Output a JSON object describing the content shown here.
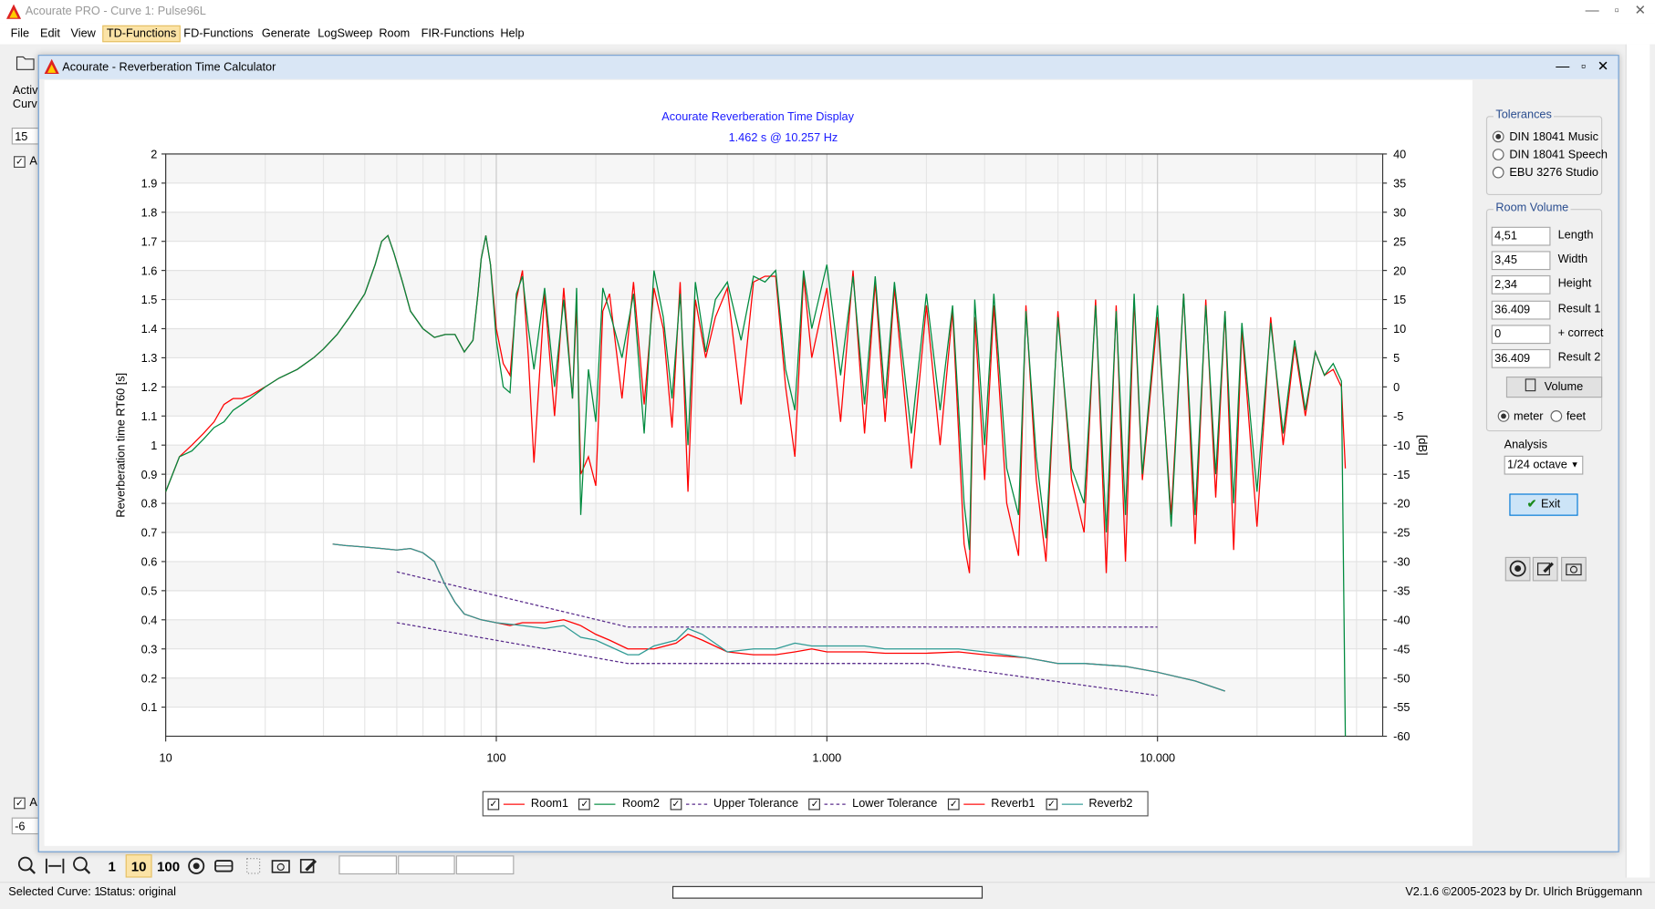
{
  "window": {
    "title": "Acourate PRO - Curve 1: Pulse96L"
  },
  "menu": [
    "File",
    "Edit",
    "View",
    "TD-Functions",
    "FD-Functions",
    "Generate",
    "LogSweep",
    "Room",
    "FIR-Functions",
    "Help"
  ],
  "left_panel": {
    "label1": "Activ",
    "label2": "Curv",
    "field1": "15",
    "check1": "A",
    "check2": "A",
    "field2": "-6"
  },
  "dialog": {
    "title": "Acourate - Reverberation Time Calculator",
    "tolerances": {
      "title": "Tolerances",
      "options": [
        "DIN 18041 Music",
        "DIN 18041 Speech",
        "EBU 3276 Studio"
      ]
    },
    "room_volume": {
      "title": "Room Volume",
      "fields": [
        {
          "value": "4,51",
          "label": "Length"
        },
        {
          "value": "3,45",
          "label": "Width"
        },
        {
          "value": "2,34",
          "label": "Height"
        },
        {
          "value": "36.409",
          "label": "Result 1"
        },
        {
          "value": "0",
          "label": "+ correct"
        },
        {
          "value": "36.409",
          "label": "Result 2"
        }
      ],
      "button": "Volume",
      "units": [
        "meter",
        "feet"
      ]
    },
    "analysis": {
      "label": "Analysis",
      "value": "1/24 octave"
    },
    "exit": "Exit"
  },
  "toolbar": {
    "buttons": [
      "1",
      "10",
      "100"
    ]
  },
  "statusbar": {
    "curve": "Selected Curve: 1",
    "status": "Status: original",
    "version": "V2.1.6 ©2005-2023 by Dr. Ulrich Brüggemann"
  },
  "chart_data": {
    "type": "line",
    "title": "Acourate Reverberation Time Display",
    "subtitle": "1.462 s @ 10.257 Hz",
    "y_label": "Reverberation time RT60 [s]",
    "y2_label": "[dB]",
    "log_x": true,
    "grid": true,
    "legend_position": "bottom",
    "xlim": [
      10,
      48000
    ],
    "xticks": [
      10,
      100,
      {
        "value": 1000,
        "label": "1.000"
      },
      {
        "value": 10000,
        "label": "10.000"
      }
    ],
    "xminorticks": [
      20,
      30,
      40,
      50,
      60,
      70,
      80,
      90,
      200,
      300,
      400,
      500,
      600,
      700,
      800,
      900,
      2000,
      3000,
      4000,
      5000,
      6000,
      7000,
      8000,
      9000,
      20000,
      30000,
      40000
    ],
    "ylim": [
      0,
      2
    ],
    "yticks": [
      0.1,
      0.2,
      0.3,
      0.4,
      0.5,
      0.6,
      0.7,
      0.8,
      0.9,
      1,
      1.1,
      1.2,
      1.3,
      1.4,
      1.5,
      1.6,
      1.7,
      1.8,
      1.9,
      2
    ],
    "y2lim": [
      -60,
      40
    ],
    "y2ticks": [
      -60,
      -55,
      -50,
      -45,
      -40,
      -35,
      -30,
      -25,
      -20,
      -15,
      -10,
      -5,
      0,
      5,
      10,
      15,
      20,
      25,
      30,
      35,
      40
    ],
    "series": [
      {
        "name": "Room1",
        "color": "#ff0000",
        "axis": "y2",
        "x": [
          10,
          11,
          12,
          13,
          14,
          15,
          16,
          17,
          18,
          20,
          22,
          25,
          28,
          30,
          33,
          36,
          40,
          43,
          45,
          47,
          49,
          52,
          55,
          60,
          65,
          70,
          75,
          80,
          85,
          88,
          90,
          93,
          96,
          100,
          105,
          110,
          115,
          120,
          125,
          130,
          140,
          150,
          160,
          170,
          175,
          180,
          190,
          200,
          210,
          220,
          240,
          260,
          280,
          300,
          320,
          340,
          360,
          380,
          400,
          430,
          460,
          500,
          550,
          600,
          650,
          700,
          750,
          800,
          850,
          900,
          1000,
          1100,
          1200,
          1300,
          1400,
          1500,
          1600,
          1800,
          2000,
          2200,
          2400,
          2600,
          2700,
          2800,
          3000,
          3200,
          3500,
          3800,
          4000,
          4300,
          4600,
          5000,
          5500,
          6000,
          6500,
          7000,
          7500,
          8000,
          8500,
          9000,
          10000,
          11000,
          12000,
          13000,
          14000,
          15000,
          16000,
          17000,
          18000,
          20000,
          22000,
          24000,
          26000,
          28000,
          30000,
          32000,
          34000,
          36000,
          37000
        ],
        "values": [
          -18,
          -12,
          -10,
          -8,
          -6,
          -3,
          -2,
          -2,
          -1.5,
          0,
          1.5,
          3,
          5,
          6.5,
          9,
          12,
          16,
          21,
          25,
          26,
          23,
          18,
          13,
          10,
          8.5,
          9,
          9,
          6,
          8,
          16,
          22,
          26,
          21,
          10,
          4,
          2,
          15,
          20,
          5,
          -13,
          16,
          -5,
          17,
          -2,
          14,
          -15,
          -12,
          -17,
          13,
          16,
          -2,
          18,
          -3,
          17,
          10,
          -7,
          18,
          -18,
          15,
          5,
          12,
          17,
          -3,
          18,
          19,
          19,
          0,
          -12,
          19,
          5,
          17,
          -6,
          20,
          -8,
          18,
          -6,
          17,
          -14,
          14,
          -10,
          13,
          -27,
          -32,
          12,
          -16,
          14,
          -20,
          -29,
          14,
          -16,
          -30,
          13,
          -16,
          -25,
          15,
          -32,
          14,
          -30,
          15,
          -16,
          12,
          -22,
          16,
          -27,
          15,
          -19,
          13,
          -28,
          10,
          -24,
          12,
          -10,
          7,
          -5,
          6,
          2,
          3,
          0,
          -14
        ]
      },
      {
        "name": "Room2",
        "color": "#008a3e",
        "axis": "y2",
        "x": [
          10,
          11,
          12,
          13,
          14,
          15,
          16,
          17,
          18,
          20,
          22,
          25,
          28,
          30,
          33,
          36,
          40,
          43,
          45,
          47,
          49,
          52,
          55,
          60,
          65,
          70,
          75,
          80,
          85,
          88,
          90,
          93,
          96,
          100,
          105,
          110,
          115,
          120,
          125,
          130,
          140,
          150,
          160,
          170,
          175,
          180,
          190,
          200,
          210,
          220,
          240,
          260,
          280,
          300,
          320,
          340,
          360,
          380,
          400,
          430,
          460,
          500,
          550,
          600,
          650,
          700,
          750,
          800,
          850,
          900,
          1000,
          1100,
          1200,
          1300,
          1400,
          1500,
          1600,
          1800,
          2000,
          2200,
          2400,
          2600,
          2700,
          2800,
          3000,
          3200,
          3500,
          3800,
          4000,
          4300,
          4600,
          5000,
          5500,
          6000,
          6500,
          7000,
          7500,
          8000,
          8500,
          9000,
          10000,
          11000,
          12000,
          13000,
          14000,
          15000,
          16000,
          17000,
          18000,
          20000,
          22000,
          24000,
          26000,
          28000,
          30000,
          32000,
          34000,
          36000,
          37000
        ],
        "values": [
          -18,
          -12,
          -11,
          -9,
          -7,
          -6,
          -4,
          -3,
          -2,
          0,
          1.5,
          3,
          5,
          6.5,
          9,
          12,
          16,
          21,
          25,
          26,
          23,
          18,
          13,
          10,
          8.5,
          9,
          9,
          6,
          8,
          16,
          22,
          26,
          21,
          8,
          0,
          -1,
          16,
          19,
          10,
          3,
          17,
          0,
          15,
          -2,
          17,
          -22,
          3,
          -6,
          17,
          13,
          5,
          16,
          -8,
          20,
          12,
          -2,
          16,
          -10,
          18,
          6,
          15,
          18,
          8,
          19,
          18,
          20,
          3,
          -4,
          20,
          10,
          21,
          2,
          19,
          -3,
          19,
          -2,
          18,
          -8,
          16,
          -4,
          14,
          -20,
          -28,
          15,
          -10,
          16,
          -14,
          -22,
          13,
          -12,
          -26,
          12,
          -14,
          -20,
          14,
          -25,
          13,
          -22,
          16,
          -15,
          14,
          -24,
          16,
          -22,
          14,
          -15,
          13,
          -20,
          11,
          -18,
          11,
          -8,
          8,
          -4,
          6,
          2,
          4,
          1,
          -60
        ]
      },
      {
        "name": "Upper Tolerance",
        "color": "#5a2d8c",
        "axis": "y",
        "dashed": true,
        "x": [
          50,
          250,
          10000
        ],
        "values": [
          0.565,
          0.375,
          0.375
        ]
      },
      {
        "name": "Lower Tolerance",
        "color": "#5a2d8c",
        "axis": "y",
        "dashed": true,
        "x": [
          50,
          250,
          2000,
          10000
        ],
        "values": [
          0.39,
          0.25,
          0.25,
          0.14
        ]
      },
      {
        "name": "Reverb1",
        "color": "#ff0000",
        "axis": "y",
        "x": [
          32,
          35,
          40,
          45,
          50,
          55,
          60,
          65,
          70,
          75,
          80,
          90,
          100,
          110,
          120,
          140,
          160,
          180,
          200,
          220,
          250,
          300,
          350,
          380,
          420,
          500,
          600,
          700,
          800,
          900,
          1000,
          1300,
          1500,
          2000,
          2500,
          3000,
          4000,
          5000,
          6000,
          8000,
          10000,
          13000,
          16000
        ],
        "values": [
          0.66,
          0.655,
          0.65,
          0.645,
          0.64,
          0.645,
          0.63,
          0.6,
          0.52,
          0.46,
          0.42,
          0.4,
          0.39,
          0.38,
          0.39,
          0.39,
          0.4,
          0.38,
          0.35,
          0.33,
          0.3,
          0.3,
          0.32,
          0.35,
          0.33,
          0.29,
          0.28,
          0.28,
          0.29,
          0.3,
          0.29,
          0.29,
          0.285,
          0.285,
          0.29,
          0.28,
          0.27,
          0.25,
          0.25,
          0.24,
          0.22,
          0.19,
          0.155
        ]
      },
      {
        "name": "Reverb2",
        "color": "#2e9a94",
        "axis": "y",
        "x": [
          32,
          35,
          40,
          45,
          50,
          55,
          60,
          65,
          70,
          75,
          80,
          90,
          100,
          120,
          140,
          160,
          180,
          200,
          250,
          270,
          300,
          350,
          380,
          420,
          500,
          600,
          700,
          800,
          900,
          1000,
          1300,
          1500,
          2000,
          2500,
          3000,
          4000,
          5000,
          6000,
          8000,
          10000,
          13000,
          16000
        ],
        "values": [
          0.66,
          0.655,
          0.65,
          0.645,
          0.64,
          0.645,
          0.63,
          0.6,
          0.52,
          0.46,
          0.42,
          0.4,
          0.39,
          0.38,
          0.37,
          0.38,
          0.34,
          0.33,
          0.28,
          0.28,
          0.31,
          0.33,
          0.37,
          0.35,
          0.29,
          0.3,
          0.3,
          0.32,
          0.31,
          0.31,
          0.31,
          0.3,
          0.3,
          0.3,
          0.29,
          0.27,
          0.25,
          0.25,
          0.24,
          0.22,
          0.19,
          0.155
        ]
      }
    ]
  }
}
